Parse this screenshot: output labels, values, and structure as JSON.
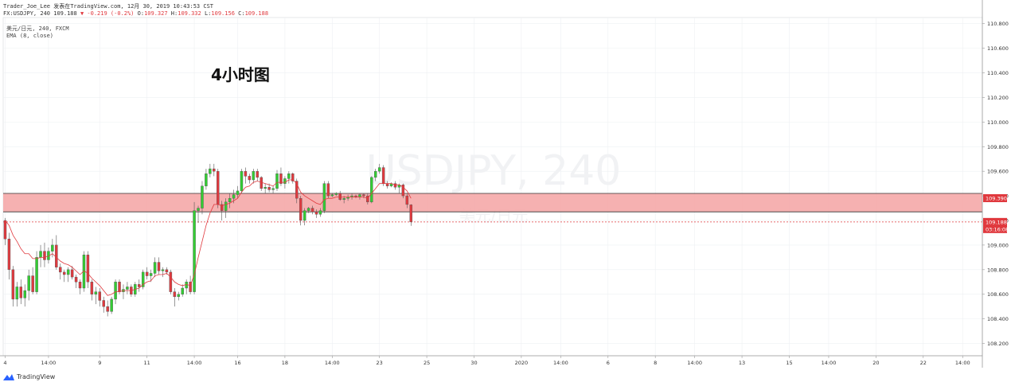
{
  "header": {
    "line1": "Trader_Joe_Lee 发表在TradingView.com, 12月 30, 2019 10:43:53 CST",
    "line2_prefix": "FX:USDJPY, 240",
    "line2_last": "109.188",
    "line2_change": "▼ -0.219 (-0.2%)",
    "line2_ohlc_o_label": "O:",
    "line2_ohlc_o": "109.327",
    "line2_ohlc_h_label": "H:",
    "line2_ohlc_h": "109.332",
    "line2_ohlc_l_label": "L:",
    "line2_ohlc_l": "109.156",
    "line2_ohlc_c_label": "C:",
    "line2_ohlc_c": "109.188"
  },
  "symbol_info": {
    "line1": "美元/日元, 240, FXCM",
    "line2": "EMA (8, close)"
  },
  "annotation": "4小时图",
  "watermark": {
    "line1": "USDJPY, 240",
    "line2": "美元/日元"
  },
  "branding": {
    "logo_text": "TradingView",
    "icon": "tradingview-logo-icon"
  },
  "colors": {
    "up": "#32cd32",
    "down": "#e0393e",
    "ema": "#e0393e",
    "zone_fill": "#f5a9a9",
    "zone_border": "#333333",
    "grid": "#eef0f3",
    "axis_text": "#333333"
  },
  "chart_data": {
    "type": "candlestick",
    "symbol": "FX:USDJPY",
    "timeframe": "240",
    "y_axis": {
      "ticks": [
        "110.800",
        "110.600",
        "110.400",
        "110.200",
        "110.000",
        "109.800",
        "109.600",
        "109.400",
        "109.200",
        "109.000",
        "108.800",
        "108.600",
        "108.400",
        "108.200"
      ],
      "tick_values": [
        110.8,
        110.6,
        110.4,
        110.2,
        110.0,
        109.8,
        109.6,
        109.4,
        109.2,
        109.0,
        108.8,
        108.6,
        108.4,
        108.2
      ],
      "ylim": [
        108.1,
        110.85
      ]
    },
    "x_axis": {
      "ticks": [
        "4",
        "14:00",
        "9",
        "11",
        "14:00",
        "16",
        "18",
        "14:00",
        "23",
        "25",
        "30",
        "2020",
        "14:00",
        "6",
        "8",
        "14:00",
        "13",
        "15",
        "14:00",
        "20",
        "22",
        "14:00"
      ],
      "tick_index": [
        0,
        11,
        24,
        36,
        48,
        59,
        71,
        83,
        95,
        107,
        119,
        131,
        141,
        153,
        165,
        175,
        187,
        199,
        209,
        221,
        233,
        243
      ],
      "index_range": [
        -0.5,
        248
      ]
    },
    "support_zone": {
      "from": 109.27,
      "to": 109.42,
      "label": "109.390"
    },
    "last_price": {
      "value": 109.188,
      "label": "109.188",
      "countdown": "03:16:08"
    },
    "candles": [
      {
        "o": 109.2,
        "h": 109.22,
        "l": 109.0,
        "c": 109.05
      },
      {
        "o": 109.05,
        "h": 109.1,
        "l": 108.72,
        "c": 108.8
      },
      {
        "o": 108.8,
        "h": 108.83,
        "l": 108.5,
        "c": 108.56
      },
      {
        "o": 108.56,
        "h": 108.7,
        "l": 108.5,
        "c": 108.66
      },
      {
        "o": 108.66,
        "h": 108.72,
        "l": 108.52,
        "c": 108.57
      },
      {
        "o": 108.57,
        "h": 108.68,
        "l": 108.5,
        "c": 108.63
      },
      {
        "o": 108.63,
        "h": 108.8,
        "l": 108.55,
        "c": 108.75
      },
      {
        "o": 108.75,
        "h": 108.82,
        "l": 108.6,
        "c": 108.62
      },
      {
        "o": 108.62,
        "h": 108.95,
        "l": 108.6,
        "c": 108.9
      },
      {
        "o": 108.9,
        "h": 109.0,
        "l": 108.82,
        "c": 108.95
      },
      {
        "o": 108.95,
        "h": 109.02,
        "l": 108.82,
        "c": 108.88
      },
      {
        "o": 108.88,
        "h": 108.98,
        "l": 108.85,
        "c": 108.95
      },
      {
        "o": 108.95,
        "h": 109.05,
        "l": 108.9,
        "c": 109.0
      },
      {
        "o": 109.0,
        "h": 109.08,
        "l": 108.8,
        "c": 108.82
      },
      {
        "o": 108.82,
        "h": 108.85,
        "l": 108.72,
        "c": 108.78
      },
      {
        "o": 108.78,
        "h": 108.8,
        "l": 108.7,
        "c": 108.76
      },
      {
        "o": 108.76,
        "h": 108.82,
        "l": 108.7,
        "c": 108.8
      },
      {
        "o": 108.8,
        "h": 108.83,
        "l": 108.72,
        "c": 108.74
      },
      {
        "o": 108.74,
        "h": 108.76,
        "l": 108.65,
        "c": 108.7
      },
      {
        "o": 108.7,
        "h": 108.72,
        "l": 108.6,
        "c": 108.65
      },
      {
        "o": 108.65,
        "h": 108.95,
        "l": 108.62,
        "c": 108.92
      },
      {
        "o": 108.92,
        "h": 108.95,
        "l": 108.65,
        "c": 108.7
      },
      {
        "o": 108.7,
        "h": 108.72,
        "l": 108.55,
        "c": 108.6
      },
      {
        "o": 108.6,
        "h": 108.66,
        "l": 108.52,
        "c": 108.62
      },
      {
        "o": 108.62,
        "h": 108.65,
        "l": 108.5,
        "c": 108.55
      },
      {
        "o": 108.55,
        "h": 108.58,
        "l": 108.45,
        "c": 108.5
      },
      {
        "o": 108.5,
        "h": 108.55,
        "l": 108.42,
        "c": 108.46
      },
      {
        "o": 108.46,
        "h": 108.58,
        "l": 108.44,
        "c": 108.56
      },
      {
        "o": 108.56,
        "h": 108.72,
        "l": 108.52,
        "c": 108.7
      },
      {
        "o": 108.7,
        "h": 108.72,
        "l": 108.6,
        "c": 108.62
      },
      {
        "o": 108.62,
        "h": 108.68,
        "l": 108.56,
        "c": 108.64
      },
      {
        "o": 108.64,
        "h": 108.7,
        "l": 108.6,
        "c": 108.66
      },
      {
        "o": 108.66,
        "h": 108.68,
        "l": 108.58,
        "c": 108.6
      },
      {
        "o": 108.6,
        "h": 108.7,
        "l": 108.58,
        "c": 108.68
      },
      {
        "o": 108.68,
        "h": 108.72,
        "l": 108.62,
        "c": 108.66
      },
      {
        "o": 108.66,
        "h": 108.8,
        "l": 108.64,
        "c": 108.78
      },
      {
        "o": 108.78,
        "h": 108.82,
        "l": 108.72,
        "c": 108.75
      },
      {
        "o": 108.75,
        "h": 108.8,
        "l": 108.7,
        "c": 108.77
      },
      {
        "o": 108.77,
        "h": 108.9,
        "l": 108.74,
        "c": 108.86
      },
      {
        "o": 108.86,
        "h": 108.9,
        "l": 108.76,
        "c": 108.79
      },
      {
        "o": 108.79,
        "h": 108.82,
        "l": 108.74,
        "c": 108.8
      },
      {
        "o": 108.8,
        "h": 108.82,
        "l": 108.76,
        "c": 108.78
      },
      {
        "o": 108.78,
        "h": 108.8,
        "l": 108.6,
        "c": 108.62
      },
      {
        "o": 108.62,
        "h": 108.65,
        "l": 108.5,
        "c": 108.58
      },
      {
        "o": 108.58,
        "h": 108.62,
        "l": 108.55,
        "c": 108.6
      },
      {
        "o": 108.6,
        "h": 108.68,
        "l": 108.58,
        "c": 108.65
      },
      {
        "o": 108.65,
        "h": 108.72,
        "l": 108.6,
        "c": 108.7
      },
      {
        "o": 108.7,
        "h": 108.75,
        "l": 108.6,
        "c": 108.62
      },
      {
        "o": 108.62,
        "h": 109.35,
        "l": 108.6,
        "c": 109.28
      },
      {
        "o": 109.28,
        "h": 109.32,
        "l": 109.18,
        "c": 109.3
      },
      {
        "o": 109.3,
        "h": 109.52,
        "l": 109.25,
        "c": 109.48
      },
      {
        "o": 109.48,
        "h": 109.62,
        "l": 109.45,
        "c": 109.58
      },
      {
        "o": 109.58,
        "h": 109.66,
        "l": 109.55,
        "c": 109.62
      },
      {
        "o": 109.62,
        "h": 109.66,
        "l": 109.56,
        "c": 109.6
      },
      {
        "o": 109.6,
        "h": 109.62,
        "l": 109.3,
        "c": 109.33
      },
      {
        "o": 109.33,
        "h": 109.36,
        "l": 109.2,
        "c": 109.28
      },
      {
        "o": 109.28,
        "h": 109.38,
        "l": 109.22,
        "c": 109.35
      },
      {
        "o": 109.35,
        "h": 109.42,
        "l": 109.3,
        "c": 109.38
      },
      {
        "o": 109.38,
        "h": 109.45,
        "l": 109.34,
        "c": 109.41
      },
      {
        "o": 109.41,
        "h": 109.48,
        "l": 109.38,
        "c": 109.44
      },
      {
        "o": 109.44,
        "h": 109.62,
        "l": 109.42,
        "c": 109.6
      },
      {
        "o": 109.6,
        "h": 109.63,
        "l": 109.5,
        "c": 109.56
      },
      {
        "o": 109.56,
        "h": 109.58,
        "l": 109.5,
        "c": 109.53
      },
      {
        "o": 109.53,
        "h": 109.62,
        "l": 109.5,
        "c": 109.6
      },
      {
        "o": 109.6,
        "h": 109.62,
        "l": 109.52,
        "c": 109.55
      },
      {
        "o": 109.55,
        "h": 109.56,
        "l": 109.44,
        "c": 109.46
      },
      {
        "o": 109.46,
        "h": 109.5,
        "l": 109.42,
        "c": 109.47
      },
      {
        "o": 109.47,
        "h": 109.5,
        "l": 109.43,
        "c": 109.45
      },
      {
        "o": 109.45,
        "h": 109.48,
        "l": 109.42,
        "c": 109.46
      },
      {
        "o": 109.46,
        "h": 109.61,
        "l": 109.44,
        "c": 109.58
      },
      {
        "o": 109.58,
        "h": 109.63,
        "l": 109.48,
        "c": 109.5
      },
      {
        "o": 109.5,
        "h": 109.56,
        "l": 109.46,
        "c": 109.54
      },
      {
        "o": 109.54,
        "h": 109.6,
        "l": 109.5,
        "c": 109.58
      },
      {
        "o": 109.58,
        "h": 109.59,
        "l": 109.5,
        "c": 109.52
      },
      {
        "o": 109.52,
        "h": 109.54,
        "l": 109.34,
        "c": 109.38
      },
      {
        "o": 109.38,
        "h": 109.4,
        "l": 109.16,
        "c": 109.2
      },
      {
        "o": 109.2,
        "h": 109.3,
        "l": 109.16,
        "c": 109.28
      },
      {
        "o": 109.28,
        "h": 109.31,
        "l": 109.26,
        "c": 109.3
      },
      {
        "o": 109.3,
        "h": 109.32,
        "l": 109.25,
        "c": 109.27
      },
      {
        "o": 109.27,
        "h": 109.29,
        "l": 109.22,
        "c": 109.25
      },
      {
        "o": 109.25,
        "h": 109.3,
        "l": 109.23,
        "c": 109.28
      },
      {
        "o": 109.28,
        "h": 109.52,
        "l": 109.26,
        "c": 109.5
      },
      {
        "o": 109.5,
        "h": 109.52,
        "l": 109.38,
        "c": 109.4
      },
      {
        "o": 109.4,
        "h": 109.42,
        "l": 109.39,
        "c": 109.41
      },
      {
        "o": 109.41,
        "h": 109.43,
        "l": 109.4,
        "c": 109.42
      },
      {
        "o": 109.42,
        "h": 109.44,
        "l": 109.36,
        "c": 109.37
      },
      {
        "o": 109.37,
        "h": 109.4,
        "l": 109.34,
        "c": 109.38
      },
      {
        "o": 109.38,
        "h": 109.41,
        "l": 109.36,
        "c": 109.39
      },
      {
        "o": 109.39,
        "h": 109.42,
        "l": 109.37,
        "c": 109.4
      },
      {
        "o": 109.4,
        "h": 109.41,
        "l": 109.38,
        "c": 109.39
      },
      {
        "o": 109.39,
        "h": 109.42,
        "l": 109.37,
        "c": 109.41
      },
      {
        "o": 109.41,
        "h": 109.42,
        "l": 109.38,
        "c": 109.4
      },
      {
        "o": 109.4,
        "h": 109.42,
        "l": 109.33,
        "c": 109.35
      },
      {
        "o": 109.35,
        "h": 109.56,
        "l": 109.34,
        "c": 109.55
      },
      {
        "o": 109.55,
        "h": 109.62,
        "l": 109.52,
        "c": 109.6
      },
      {
        "o": 109.6,
        "h": 109.66,
        "l": 109.58,
        "c": 109.63
      },
      {
        "o": 109.63,
        "h": 109.65,
        "l": 109.48,
        "c": 109.5
      },
      {
        "o": 109.5,
        "h": 109.52,
        "l": 109.46,
        "c": 109.48
      },
      {
        "o": 109.48,
        "h": 109.51,
        "l": 109.47,
        "c": 109.5
      },
      {
        "o": 109.5,
        "h": 109.52,
        "l": 109.45,
        "c": 109.47
      },
      {
        "o": 109.47,
        "h": 109.5,
        "l": 109.42,
        "c": 109.49
      },
      {
        "o": 109.49,
        "h": 109.5,
        "l": 109.38,
        "c": 109.4
      },
      {
        "o": 109.4,
        "h": 109.42,
        "l": 109.3,
        "c": 109.33
      },
      {
        "o": 109.327,
        "h": 109.332,
        "l": 109.156,
        "c": 109.188
      }
    ],
    "ema": {
      "period": 8,
      "values": [
        109.2,
        109.16,
        109.08,
        109.03,
        108.97,
        108.93,
        108.93,
        108.89,
        108.89,
        108.9,
        108.9,
        108.91,
        108.93,
        108.9,
        108.87,
        108.85,
        108.84,
        108.82,
        108.79,
        108.76,
        108.79,
        108.77,
        108.73,
        108.7,
        108.67,
        108.63,
        108.59,
        108.6,
        108.62,
        108.62,
        108.63,
        108.63,
        108.63,
        108.64,
        108.65,
        108.68,
        108.7,
        108.71,
        108.75,
        108.76,
        108.76,
        108.77,
        108.74,
        108.7,
        108.68,
        108.67,
        108.68,
        108.67,
        108.76,
        108.9,
        109.03,
        109.16,
        109.26,
        109.33,
        109.33,
        109.32,
        109.33,
        109.34,
        109.36,
        109.38,
        109.43,
        109.47,
        109.48,
        109.51,
        109.52,
        109.51,
        109.5,
        109.49,
        109.48,
        109.51,
        109.51,
        109.51,
        109.53,
        109.53,
        109.5,
        109.43,
        109.4,
        109.38,
        109.36,
        109.34,
        109.33,
        109.37,
        109.38,
        109.38,
        109.39,
        109.39,
        109.39,
        109.39,
        109.39,
        109.39,
        109.39,
        109.39,
        109.38,
        109.42,
        109.46,
        109.5,
        109.5,
        109.5,
        109.5,
        109.49,
        109.49,
        109.47,
        109.44,
        109.38
      ]
    }
  }
}
